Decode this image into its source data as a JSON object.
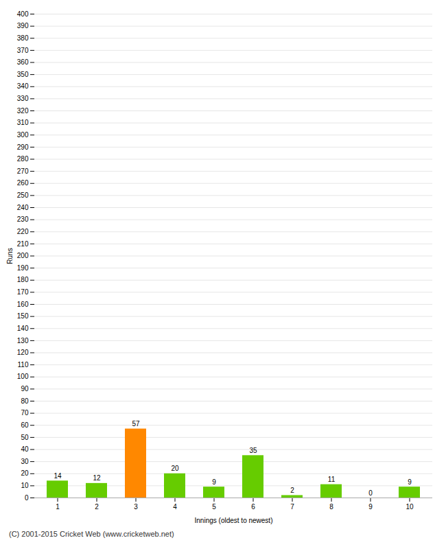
{
  "chart_data": {
    "type": "bar",
    "categories": [
      "1",
      "2",
      "3",
      "4",
      "5",
      "6",
      "7",
      "8",
      "9",
      "10"
    ],
    "values": [
      14,
      12,
      57,
      20,
      9,
      35,
      2,
      11,
      0,
      9
    ],
    "colors": [
      "#66cc00",
      "#66cc00",
      "#ff8800",
      "#66cc00",
      "#66cc00",
      "#66cc00",
      "#66cc00",
      "#66cc00",
      "#66cc00",
      "#66cc00"
    ],
    "xlabel": "Innings (oldest to newest)",
    "ylabel": "Runs",
    "ylim": [
      0,
      400
    ],
    "yticks": [
      0,
      10,
      20,
      30,
      40,
      50,
      60,
      70,
      80,
      90,
      100,
      110,
      120,
      130,
      140,
      150,
      160,
      170,
      180,
      190,
      200,
      210,
      220,
      230,
      240,
      250,
      260,
      270,
      280,
      290,
      300,
      310,
      320,
      330,
      340,
      350,
      360,
      370,
      380,
      390,
      400
    ],
    "grid": true,
    "data_labels": true,
    "annotations": [
      "(C) 2001-2015 Cricket Web (www.cricketweb.net)"
    ]
  }
}
